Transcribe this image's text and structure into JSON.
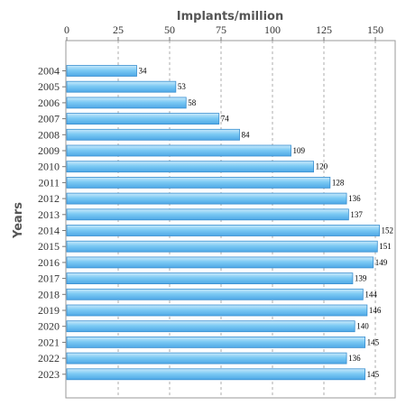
{
  "chart_data": {
    "type": "bar",
    "orientation": "horizontal",
    "title": "",
    "xlabel": "Implants/million",
    "ylabel": "Years",
    "xaxis_position": "top",
    "xlim": [
      0,
      157
    ],
    "xticks": [
      0,
      25,
      50,
      75,
      100,
      125,
      150
    ],
    "grid": true,
    "legend": "none",
    "categories": [
      "2004",
      "2005",
      "2006",
      "2007",
      "2008",
      "2009",
      "2010",
      "2011",
      "2012",
      "2013",
      "2014",
      "2015",
      "2016",
      "2017",
      "2018",
      "2019",
      "2020",
      "2021",
      "2022",
      "2023"
    ],
    "values": [
      34,
      53,
      58,
      74,
      84,
      109,
      120,
      128,
      136,
      137,
      152,
      151,
      149,
      139,
      144,
      146,
      140,
      145,
      136,
      145
    ],
    "bar_color": "#6ec0f0",
    "bar_edge_color": "#3a8fd0"
  }
}
